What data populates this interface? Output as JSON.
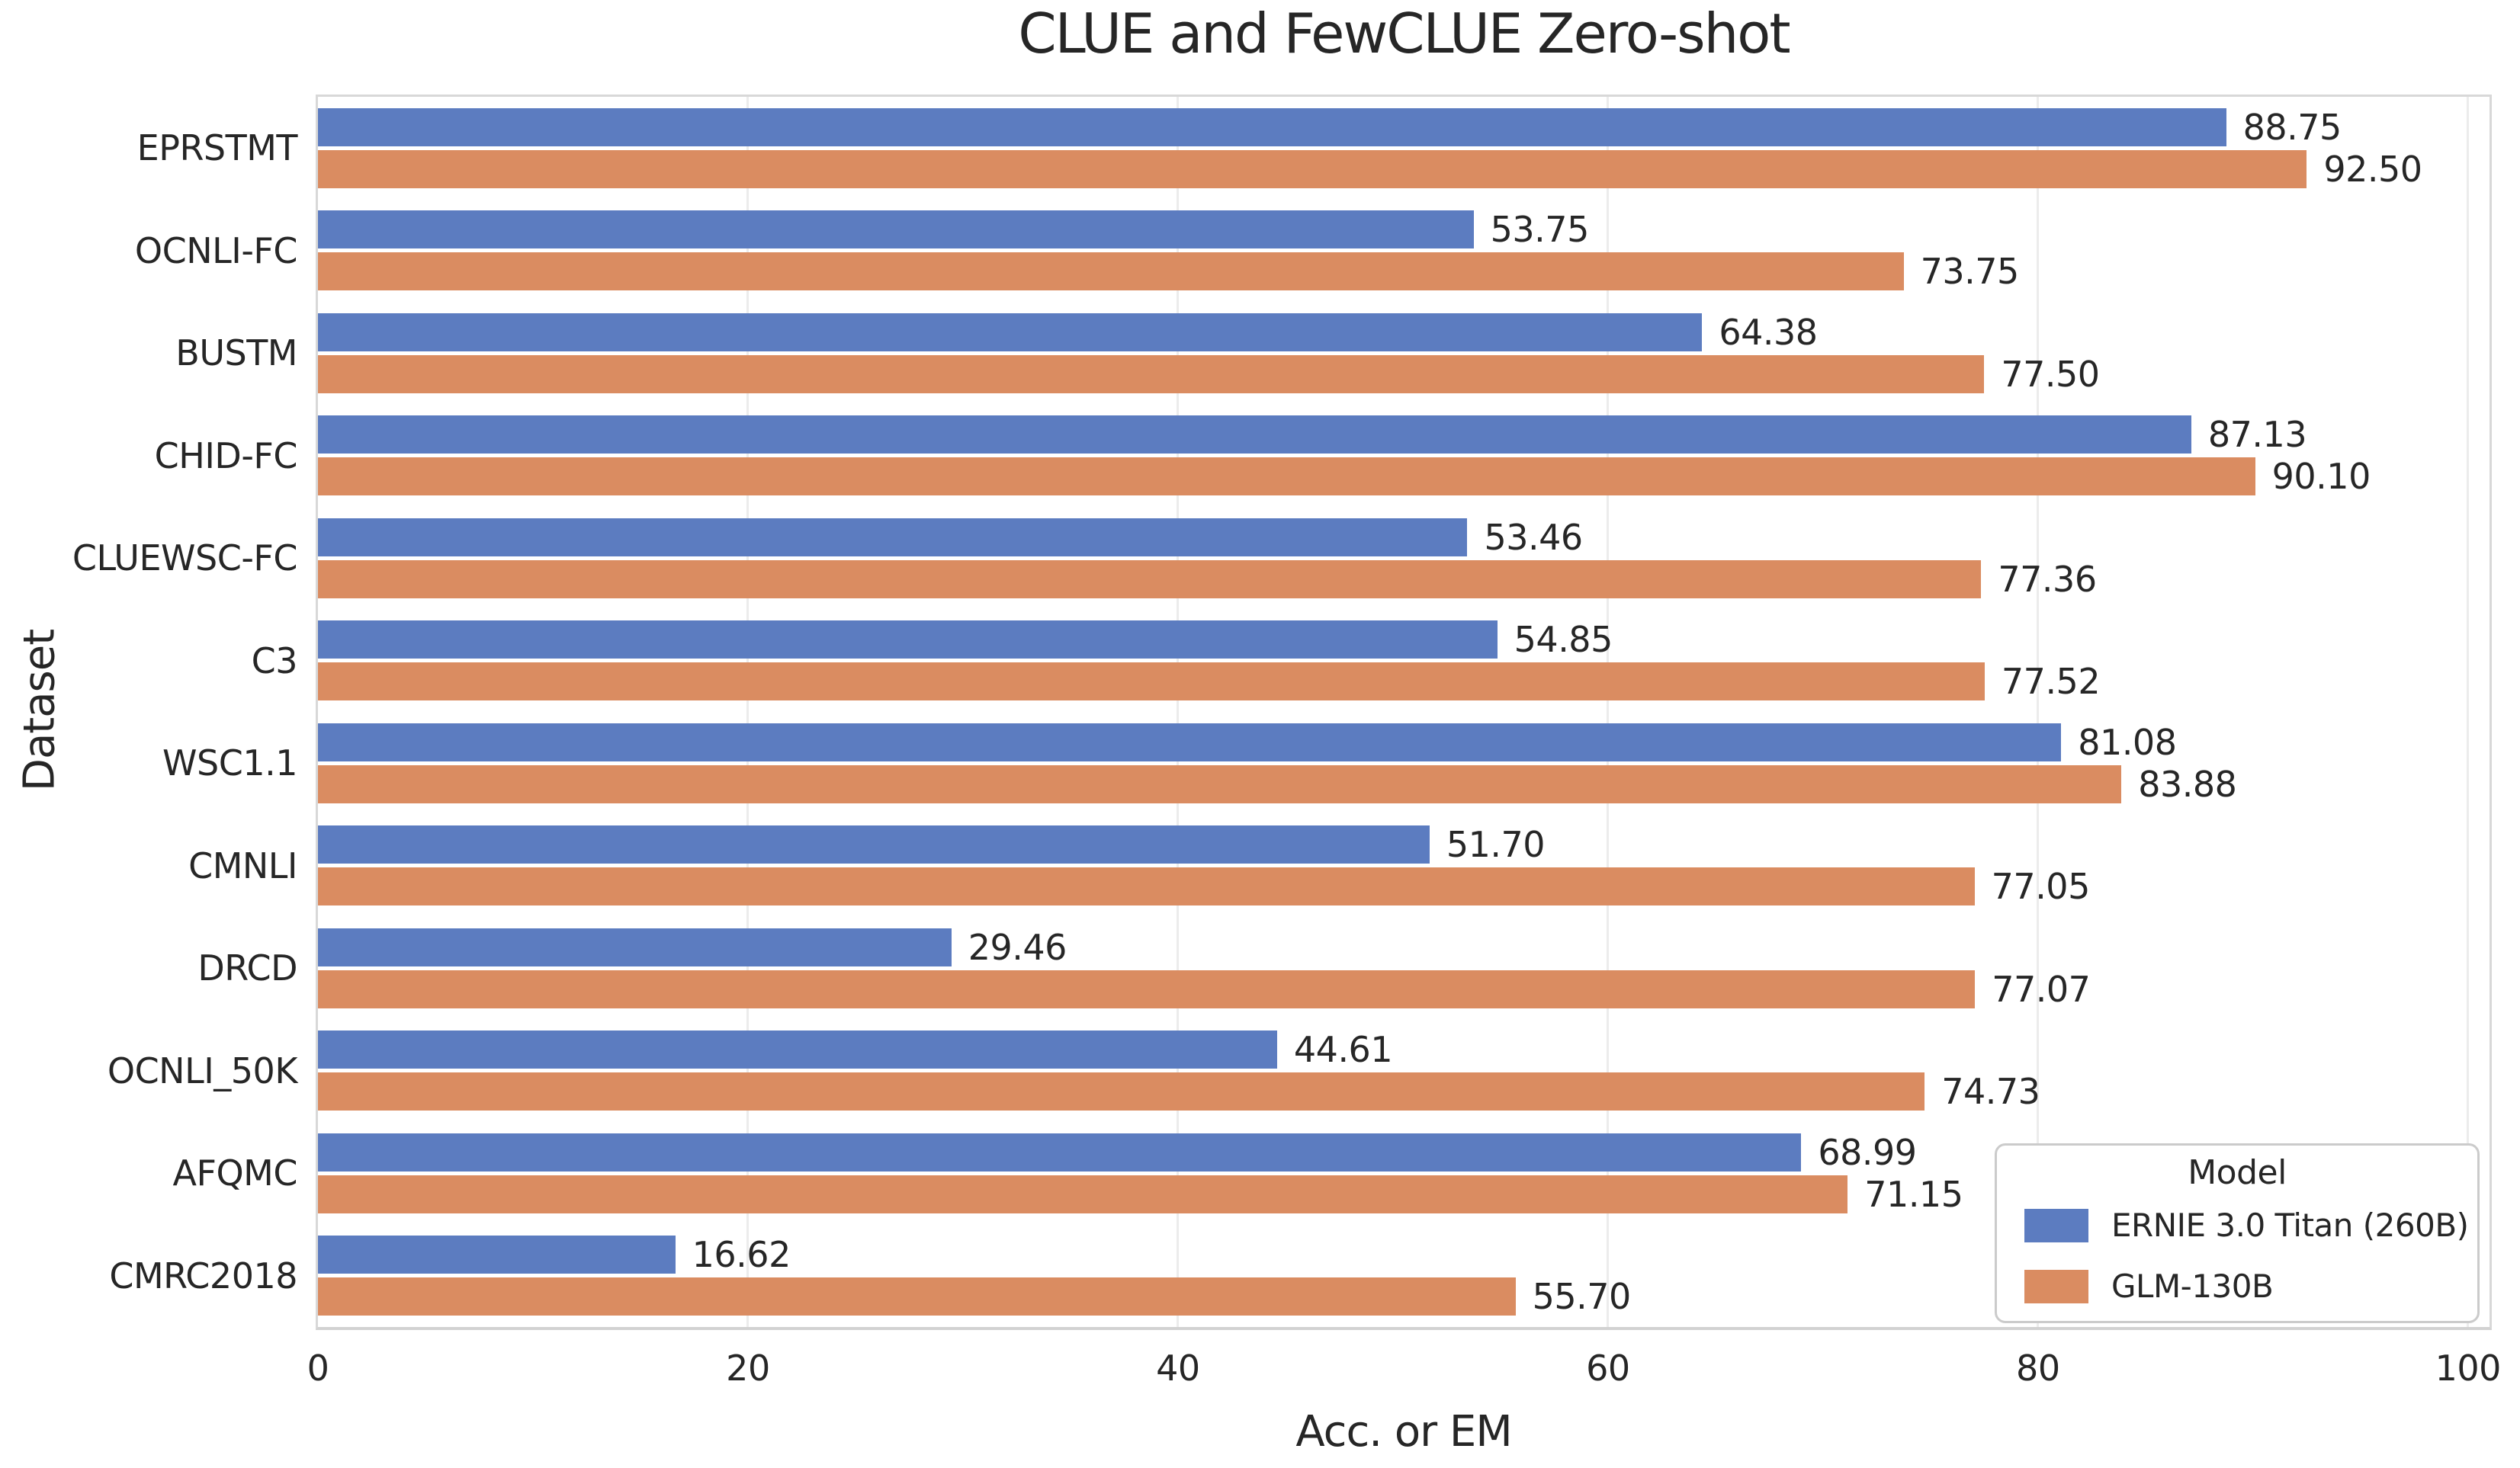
{
  "chart_data": {
    "type": "bar",
    "orientation": "horizontal",
    "title": "CLUE and FewCLUE Zero-shot",
    "xlabel": "Acc. or EM",
    "ylabel": "Dataset",
    "categories": [
      "EPRSTMT",
      "OCNLI-FC",
      "BUSTM",
      "CHID-FC",
      "CLUEWSC-FC",
      "C3",
      "WSC1.1",
      "CMNLI",
      "DRCD",
      "OCNLI_50K",
      "AFQMC",
      "CMRC2018"
    ],
    "series": [
      {
        "name": "ERNIE 3.0 Titan (260B)",
        "color": "#5C7CC0",
        "values": [
          88.75,
          53.75,
          64.38,
          87.13,
          53.46,
          54.85,
          81.08,
          51.7,
          29.46,
          44.61,
          68.99,
          16.62
        ]
      },
      {
        "name": "GLM-130B",
        "color": "#DA8C61",
        "values": [
          92.5,
          73.75,
          77.5,
          90.1,
          77.36,
          77.52,
          83.88,
          77.05,
          77.07,
          74.73,
          71.15,
          55.7
        ]
      }
    ],
    "xlim": [
      0,
      100
    ],
    "xticks": [
      0,
      20,
      40,
      60,
      80,
      100
    ],
    "grid": true,
    "value_label_decimals": 2,
    "legend": {
      "title": "Model",
      "position": "lower right"
    }
  },
  "colors": {
    "background": "#FFFFFF",
    "text": "#262626",
    "grid": "#ECECEC",
    "spine": "#D8D8D8",
    "series_blue": "#5C7CC0",
    "series_orange": "#DA8C61"
  }
}
